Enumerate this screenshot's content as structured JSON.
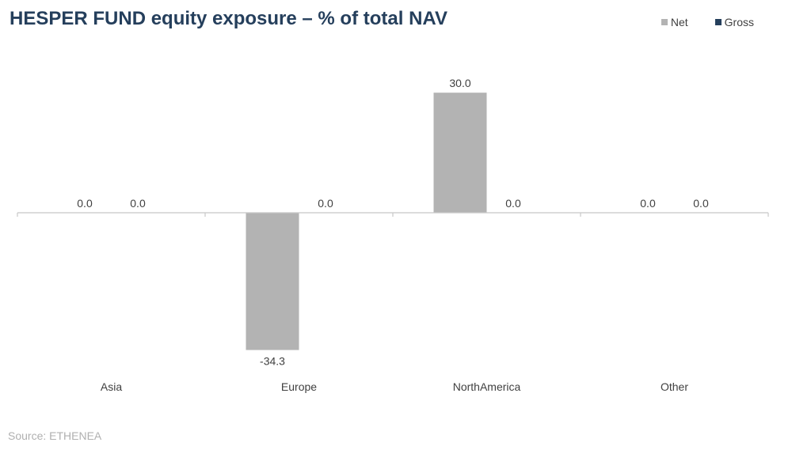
{
  "chart_data": {
    "type": "bar",
    "title": "HESPER FUND equity exposure – % of total NAV",
    "categories": [
      "Asia",
      "Europe",
      "NorthAmerica",
      "Other"
    ],
    "series": [
      {
        "name": "Net",
        "values": [
          0.0,
          -34.3,
          30.0,
          0.0
        ],
        "labels": [
          "0.0",
          "-34.3",
          "30.0",
          "0.0"
        ],
        "color": "#b3b3b3"
      },
      {
        "name": "Gross",
        "values": [
          0.0,
          0.0,
          0.0,
          0.0
        ],
        "labels": [
          "0.0",
          "0.0",
          "0.0",
          "0.0"
        ],
        "color": "#253f5c"
      }
    ],
    "ylim": [
      -40,
      40
    ],
    "grid": false,
    "legend": "top-right",
    "xlabel": "",
    "ylabel": ""
  },
  "source": "Source: ETHENEA",
  "colors": {
    "title": "#253f5c",
    "axis": "#c8c8c8",
    "text": "#404040"
  }
}
